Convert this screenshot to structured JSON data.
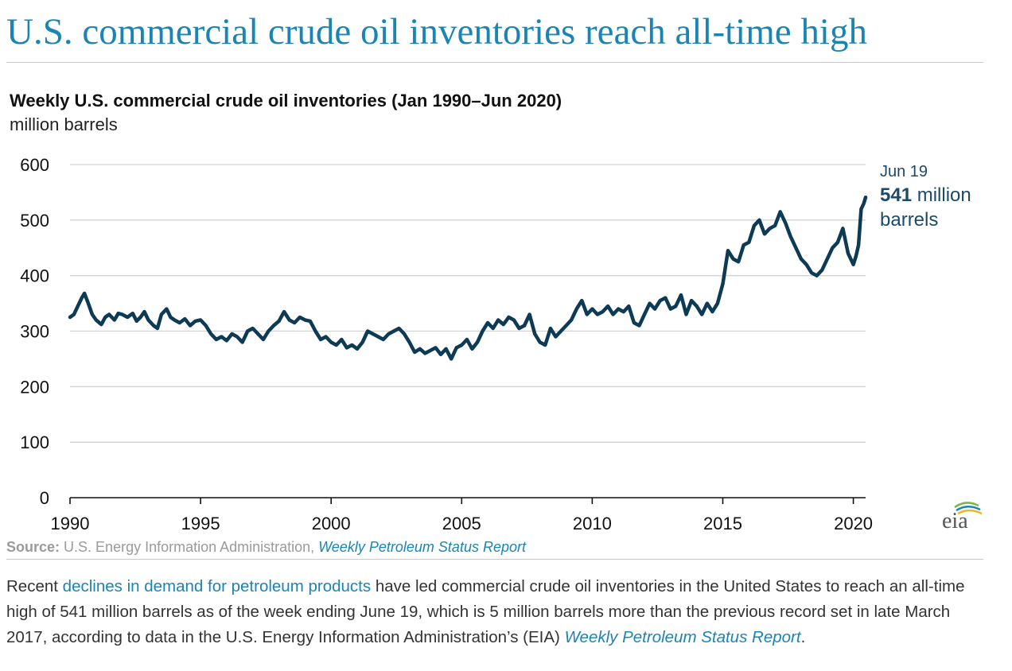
{
  "headline": "U.S. commercial crude oil inventories reach all-time high",
  "chart_data": {
    "type": "line",
    "title": "Weekly U.S. commercial crude oil inventories (Jan 1990–Jun 2020)",
    "subtitle": "million barrels",
    "xlim": [
      1990,
      2020.47
    ],
    "ylim": [
      0,
      600
    ],
    "x_ticks": [
      "1990",
      "1995",
      "2000",
      "2005",
      "2010",
      "2015",
      "2020"
    ],
    "y_ticks": [
      "600",
      "500",
      "400",
      "300",
      "200",
      "100",
      "0"
    ],
    "grid": true,
    "color": "#0d3a55",
    "annotation": {
      "date": "Jun 19",
      "value": "541",
      "unit_line1": "million",
      "unit_line2": "barrels"
    },
    "series": [
      {
        "x": [
          1990.0,
          1990.15,
          1990.3,
          1990.45,
          1990.55,
          1990.7,
          1990.85,
          1991.0,
          1991.2,
          1991.35,
          1991.5,
          1991.7,
          1991.85,
          1992.0,
          1992.2,
          1992.4,
          1992.55,
          1992.7,
          1992.85,
          1993.0,
          1993.2,
          1993.35,
          1993.5,
          1993.7,
          1993.85,
          1994.0,
          1994.2,
          1994.4,
          1994.6,
          1994.8,
          1995.0,
          1995.2,
          1995.4,
          1995.6,
          1995.8,
          1996.0,
          1996.2,
          1996.4,
          1996.6,
          1996.8,
          1997.0,
          1997.2,
          1997.4,
          1997.6,
          1997.8,
          1998.0,
          1998.2,
          1998.4,
          1998.6,
          1998.8,
          1999.0,
          1999.2,
          1999.4,
          1999.6,
          1999.8,
          2000.0,
          2000.2,
          2000.4,
          2000.6,
          2000.8,
          2001.0,
          2001.2,
          2001.4,
          2001.6,
          2001.8,
          2002.0,
          2002.2,
          2002.4,
          2002.6,
          2002.8,
          2003.0,
          2003.2,
          2003.4,
          2003.6,
          2003.8,
          2004.0,
          2004.2,
          2004.4,
          2004.6,
          2004.8,
          2005.0,
          2005.2,
          2005.4,
          2005.6,
          2005.8,
          2006.0,
          2006.2,
          2006.4,
          2006.6,
          2006.8,
          2007.0,
          2007.2,
          2007.4,
          2007.6,
          2007.8,
          2008.0,
          2008.2,
          2008.4,
          2008.6,
          2008.8,
          2009.0,
          2009.2,
          2009.4,
          2009.6,
          2009.8,
          2010.0,
          2010.2,
          2010.4,
          2010.6,
          2010.8,
          2011.0,
          2011.2,
          2011.4,
          2011.6,
          2011.8,
          2012.0,
          2012.2,
          2012.4,
          2012.6,
          2012.8,
          2013.0,
          2013.2,
          2013.4,
          2013.6,
          2013.8,
          2014.0,
          2014.2,
          2014.4,
          2014.6,
          2014.8,
          2015.0,
          2015.2,
          2015.4,
          2015.6,
          2015.8,
          2016.0,
          2016.2,
          2016.4,
          2016.6,
          2016.8,
          2017.0,
          2017.2,
          2017.4,
          2017.6,
          2017.8,
          2018.0,
          2018.2,
          2018.4,
          2018.6,
          2018.8,
          2019.0,
          2019.2,
          2019.4,
          2019.6,
          2019.8,
          2020.0,
          2020.1,
          2020.2,
          2020.3,
          2020.4,
          2020.47
        ],
        "y": [
          325,
          330,
          345,
          360,
          368,
          350,
          330,
          320,
          312,
          325,
          330,
          320,
          332,
          330,
          325,
          332,
          318,
          325,
          335,
          320,
          310,
          305,
          330,
          340,
          325,
          320,
          315,
          322,
          310,
          318,
          320,
          310,
          295,
          285,
          290,
          283,
          295,
          290,
          280,
          300,
          305,
          295,
          285,
          300,
          310,
          318,
          335,
          320,
          315,
          325,
          320,
          318,
          300,
          285,
          290,
          280,
          275,
          285,
          270,
          275,
          268,
          280,
          300,
          295,
          290,
          285,
          295,
          300,
          305,
          295,
          280,
          262,
          268,
          260,
          265,
          270,
          258,
          268,
          250,
          270,
          275,
          285,
          268,
          280,
          300,
          315,
          305,
          320,
          312,
          325,
          320,
          305,
          310,
          330,
          295,
          280,
          275,
          305,
          290,
          300,
          310,
          320,
          340,
          355,
          330,
          340,
          330,
          335,
          345,
          330,
          340,
          335,
          345,
          315,
          310,
          330,
          350,
          340,
          355,
          360,
          340,
          345,
          365,
          330,
          355,
          345,
          330,
          350,
          335,
          350,
          385,
          445,
          430,
          425,
          455,
          460,
          490,
          500,
          475,
          485,
          490,
          515,
          495,
          470,
          450,
          430,
          420,
          405,
          400,
          410,
          430,
          450,
          460,
          485,
          440,
          420,
          435,
          455,
          520,
          530,
          541
        ]
      }
    ]
  },
  "source": {
    "label": "Source:",
    "text": "U.S. Energy Information Administration,",
    "link": "Weekly Petroleum Status Report"
  },
  "body": {
    "link1": "declines in demand for petroleum products",
    "text_pre": "Recent",
    "text_mid": "have led commercial crude oil inventories in the United States to reach an all-time high of 541 million barrels as of the week ending June 19, which is 5 million barrels more than the previous record set in late March 2017, according to data in the U.S. Energy Information Administration’s (EIA)",
    "link2": "Weekly Petroleum Status Report",
    "text_end": "."
  },
  "logo": {
    "text": "eia"
  }
}
